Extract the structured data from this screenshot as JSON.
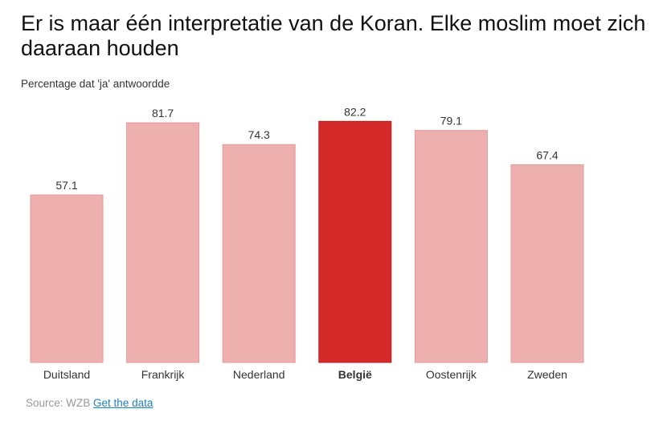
{
  "chart_data": {
    "type": "bar",
    "title": "Er is maar één interpretatie van de Koran. Elke moslim moet zich daaraan houden",
    "subtitle": "Percentage dat 'ja' antwoordde",
    "categories": [
      "Duitsland",
      "Frankrijk",
      "Nederland",
      "België",
      "Oostenrijk",
      "Zweden"
    ],
    "values": [
      57.1,
      81.7,
      74.3,
      82.2,
      79.1,
      67.4
    ],
    "highlight": "België",
    "ylim": [
      0,
      100
    ],
    "xlabel": "",
    "ylabel": "",
    "grid": false
  },
  "colors": {
    "bar": "#eeafaf",
    "bar_stroke": "#e49a9a",
    "highlight": "#d42a2a",
    "highlight_stroke": "#b51f1f",
    "label": "#333333"
  },
  "footer": {
    "source": "Source: WZB",
    "link": "Get the data"
  }
}
